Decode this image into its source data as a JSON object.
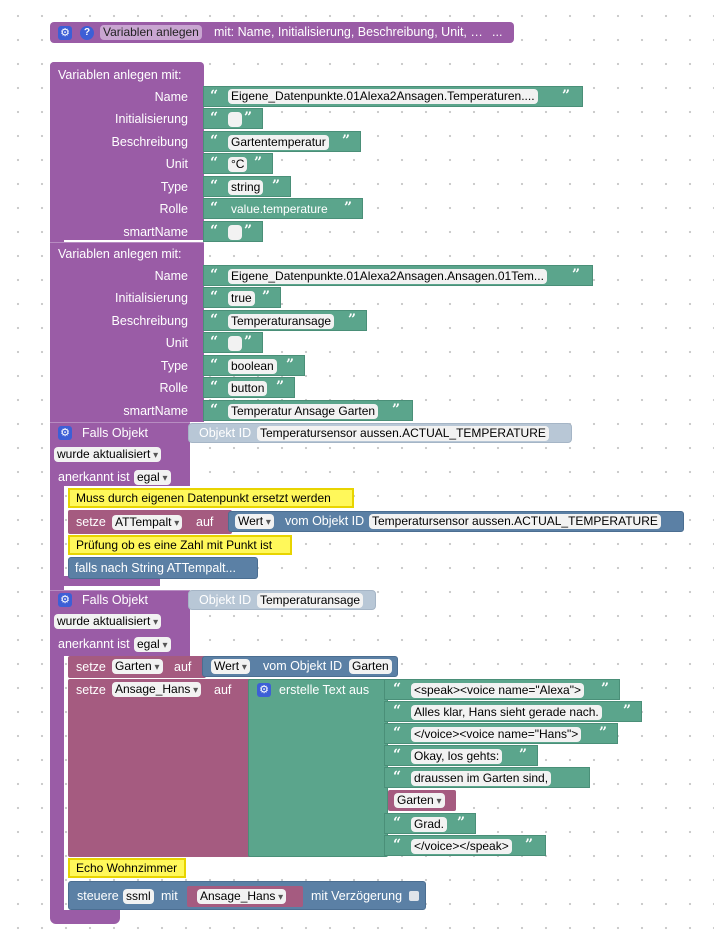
{
  "collapsed": {
    "label": "Variablen anlegen",
    "text": "mit: Name, Initialisierung, Beschreibung, Unit, …",
    "ellipsis": "..."
  },
  "var1": {
    "header": "Variablen anlegen  mit:",
    "rows": [
      {
        "label": "Name",
        "value": "Eigene_Datenpunkte.01Alexa2Ansagen.Temperaturen...."
      },
      {
        "label": "Initialisierung",
        "value": ""
      },
      {
        "label": "Beschreibung",
        "value": "Gartentemperatur"
      },
      {
        "label": "Unit",
        "value": "°C"
      },
      {
        "label": "Type",
        "value": "string"
      },
      {
        "label": "Rolle",
        "value": "value.temperature"
      },
      {
        "label": "smartName",
        "value": ""
      }
    ]
  },
  "var2": {
    "header": "Variablen anlegen  mit:",
    "rows": [
      {
        "label": "Name",
        "value": "Eigene_Datenpunkte.01Alexa2Ansagen.Ansagen.01Tem..."
      },
      {
        "label": "Initialisierung",
        "value": "true"
      },
      {
        "label": "Beschreibung",
        "value": "Temperaturansage"
      },
      {
        "label": "Unit",
        "value": ""
      },
      {
        "label": "Type",
        "value": "boolean"
      },
      {
        "label": "Rolle",
        "value": "button"
      },
      {
        "label": "smartName",
        "value": "Temperatur Ansage Garten"
      }
    ]
  },
  "trigger1": {
    "title": "Falls Objekt",
    "objectid_label": "Objekt ID",
    "objectid_value": "Temperatursensor aussen.ACTUAL_TEMPERATURE",
    "mode": "wurde aktualisiert",
    "ack_label": "anerkannt ist",
    "ack_value": "egal",
    "comment1": "Muss durch eigenen Datenpunkt ersetzt werden",
    "set_label": "setze",
    "set_var": "ATTempalt",
    "auf": "auf",
    "wert": "Wert",
    "vom_objekt": "vom Objekt ID",
    "vom_objekt_value": "Temperatursensor aussen.ACTUAL_TEMPERATURE",
    "comment2": "Prüfung ob es eine Zahl mit Punkt ist",
    "collapsed_if": "falls nach String ATTempalt..."
  },
  "trigger2": {
    "title": "Falls Objekt",
    "objectid_label": "Objekt ID",
    "objectid_value": "Temperaturansage",
    "mode": "wurde aktualisiert",
    "ack_label": "anerkannt ist",
    "ack_value": "egal",
    "set1_label": "setze",
    "set1_var": "Garten",
    "auf": "auf",
    "wert": "Wert",
    "vom_objekt": "vom Objekt ID",
    "vom_objekt_value": "Garten",
    "set2_label": "setze",
    "set2_var": "Ansage_Hans",
    "create_text": "erstelle Text aus",
    "texts": [
      "<speak><voice name=\"Alexa\">",
      "Alles klar, Hans sieht gerade nach.",
      "</voice><voice name=\"Hans\">",
      "Okay, los gehts: ",
      "draussen im Garten sind, ",
      "Garten",
      "Grad.",
      "</voice></speak>"
    ],
    "comment3": "Echo Wohnzimmer",
    "control_label": "steuere",
    "control_field": "ssml",
    "control_mit": "mit",
    "control_var": "Ansage_Hans",
    "delay_label": "mit Verzögerung"
  },
  "icons": {
    "gear": "⚙",
    "help": "?",
    "quote_open": "“",
    "quote_close": "”"
  },
  "colors": {
    "purple": "#9a5ca6",
    "green": "#5ba58c",
    "blue": "#5b80a5",
    "mauve": "#a55b80",
    "comment": "#fff85a"
  }
}
